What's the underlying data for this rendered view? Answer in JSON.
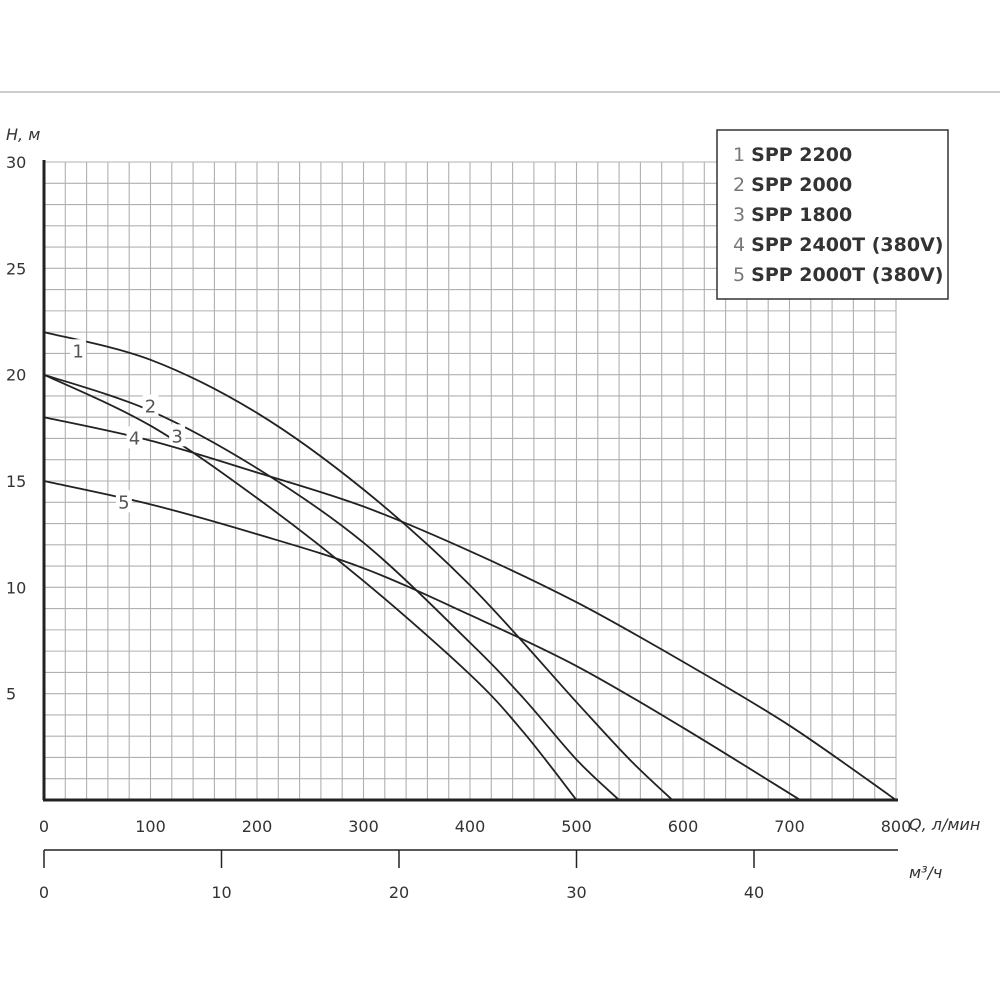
{
  "chart_data": {
    "type": "line",
    "x_axis": {
      "label": "Q, л/мин",
      "range": [
        0,
        800
      ],
      "ticks": [
        "0",
        "100",
        "200",
        "300",
        "400",
        "500",
        "600",
        "700",
        "800"
      ]
    },
    "y_axis": {
      "label": "H, м",
      "range": [
        0,
        30
      ],
      "ticks": [
        "5",
        "10",
        "15",
        "20",
        "25",
        "30"
      ]
    },
    "secondary_x_axis": {
      "label": "м³/ч",
      "range_m3h": [
        0,
        48
      ],
      "ticks": [
        "0",
        "10",
        "20",
        "30",
        "40"
      ]
    },
    "grid": true,
    "legend_position": "top-right",
    "series": [
      {
        "label": "1",
        "name": "SPP 2200",
        "x": [
          0,
          100,
          200,
          300,
          400,
          500,
          550,
          590
        ],
        "y": [
          22,
          20.7,
          18.2,
          14.6,
          10.1,
          4.6,
          1.9,
          0
        ]
      },
      {
        "label": "2",
        "name": "SPP 2000",
        "x": [
          0,
          100,
          200,
          300,
          400,
          450,
          500,
          540
        ],
        "y": [
          20,
          18.3,
          15.6,
          12.1,
          7.4,
          4.8,
          1.9,
          0
        ]
      },
      {
        "label": "3",
        "name": "SPP 1800",
        "x": [
          0,
          100,
          200,
          300,
          400,
          450,
          500
        ],
        "y": [
          20,
          17.6,
          14.2,
          10.3,
          5.9,
          3.2,
          0
        ]
      },
      {
        "label": "4",
        "name": "SPP 2400T (380V)",
        "x": [
          0,
          100,
          200,
          300,
          400,
          500,
          600,
          700,
          800
        ],
        "y": [
          18,
          16.9,
          15.4,
          13.8,
          11.7,
          9.3,
          6.5,
          3.5,
          0
        ]
      },
      {
        "label": "5",
        "name": "SPP 2000T (380V)",
        "x": [
          0,
          100,
          200,
          300,
          400,
          500,
          600,
          710
        ],
        "y": [
          15,
          13.9,
          12.5,
          10.9,
          8.7,
          6.3,
          3.4,
          0
        ]
      }
    ]
  },
  "colors": {
    "curve": "#222222",
    "grid": "#b0b0b0",
    "axis": "#222222",
    "frame": "#999999"
  }
}
